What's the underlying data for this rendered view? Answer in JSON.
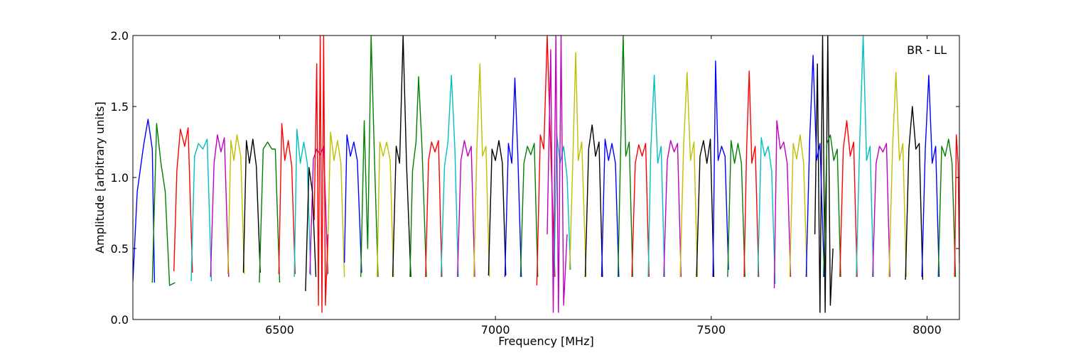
{
  "chart_data": {
    "type": "line",
    "title": "",
    "xlabel": "Frequency [MHz]",
    "ylabel": "Amplitude [arbitrary units]",
    "xlim": [
      6160,
      8075
    ],
    "ylim": [
      0,
      2.0
    ],
    "x_ticks": [
      6500,
      7000,
      7500,
      8000
    ],
    "x_tick_labels": [
      "6500",
      "7000",
      "7500",
      "8000"
    ],
    "y_ticks": [
      0.0,
      0.5,
      1.0,
      1.5,
      2.0
    ],
    "y_tick_labels": [
      "0.0",
      "0.5",
      "1.0",
      "1.5",
      "2.0"
    ],
    "grid": false,
    "annotation": "BR - LL",
    "background_series_color": "#bfbfbf",
    "palette": [
      "#0000ff",
      "#008000",
      "#ff0000",
      "#00bfbf",
      "#bf00bf",
      "#bfbf00",
      "#000000"
    ],
    "series": [
      {
        "color": "#0000ff",
        "x": [
          6160,
          6170,
          6185,
          6195,
          6205,
          6210
        ],
        "y": [
          0.27,
          0.9,
          1.23,
          1.41,
          1.2,
          0.26
        ]
      },
      {
        "color": "#008000",
        "x": [
          6205,
          6215,
          6225,
          6235,
          6245,
          6258
        ],
        "y": [
          0.26,
          1.38,
          1.1,
          0.9,
          0.24,
          0.26
        ]
      },
      {
        "color": "#ff0000",
        "x": [
          6255,
          6262,
          6270,
          6280,
          6288,
          6298
        ],
        "y": [
          0.34,
          1.05,
          1.34,
          1.22,
          1.35,
          0.33
        ]
      },
      {
        "color": "#00bfbf",
        "x": [
          6295,
          6303,
          6312,
          6322,
          6332,
          6342
        ],
        "y": [
          0.27,
          1.15,
          1.24,
          1.2,
          1.27,
          0.27
        ]
      },
      {
        "color": "#bf00bf",
        "x": [
          6340,
          6348,
          6356,
          6364,
          6372,
          6382
        ],
        "y": [
          0.3,
          1.1,
          1.3,
          1.18,
          1.28,
          0.3
        ]
      },
      {
        "color": "#bfbf00",
        "x": [
          6380,
          6387,
          6394,
          6401,
          6410,
          6418
        ],
        "y": [
          0.32,
          1.26,
          1.12,
          1.3,
          1.15,
          0.32
        ]
      },
      {
        "color": "#000000",
        "x": [
          6416,
          6423,
          6430,
          6438,
          6446,
          6455
        ],
        "y": [
          0.33,
          1.26,
          1.1,
          1.27,
          1.08,
          0.33
        ]
      },
      {
        "color": "#008000",
        "x": [
          6453,
          6462,
          6472,
          6482,
          6490,
          6500
        ],
        "y": [
          0.26,
          1.2,
          1.25,
          1.2,
          1.2,
          0.26
        ]
      },
      {
        "color": "#ff0000",
        "x": [
          6498,
          6505,
          6512,
          6520,
          6528,
          6536
        ],
        "y": [
          0.32,
          1.38,
          1.12,
          1.26,
          1.08,
          0.32
        ]
      },
      {
        "color": "#00bfbf",
        "x": [
          6534,
          6540,
          6548,
          6556,
          6564,
          6572
        ],
        "y": [
          0.3,
          1.34,
          1.1,
          1.25,
          1.1,
          0.31
        ]
      },
      {
        "color": "#bf00bf",
        "x": [
          6570,
          6578,
          6586,
          6594,
          6602,
          6612
        ],
        "y": [
          0.32,
          1.13,
          1.2,
          1.16,
          1.22,
          0.32
        ]
      },
      {
        "color": "#bfbf00",
        "x": [
          6610,
          6618,
          6626,
          6634,
          6642,
          6650
        ],
        "y": [
          0.31,
          1.32,
          1.12,
          1.26,
          1.1,
          0.3
        ]
      },
      {
        "color": "#ff0000",
        "x": [
          6580,
          6586,
          6590,
          6594,
          6598,
          6602,
          6606,
          6612
        ],
        "y": [
          0.7,
          1.8,
          0.1,
          2.0,
          0.05,
          2.0,
          0.1,
          0.6
        ]
      },
      {
        "color": "#000000",
        "x": [
          6560,
          6568,
          6576,
          6584
        ],
        "y": [
          0.2,
          1.07,
          0.9,
          0.3
        ]
      },
      {
        "color": "#0000ff",
        "x": [
          6650,
          6656,
          6664,
          6672,
          6680,
          6690
        ],
        "y": [
          0.4,
          1.3,
          1.15,
          1.25,
          1.12,
          0.33
        ]
      },
      {
        "color": "#008000",
        "x": [
          6688,
          6696,
          6704,
          6712,
          6720,
          6728
        ],
        "y": [
          0.3,
          1.4,
          0.5,
          2.0,
          1.1,
          0.3
        ]
      },
      {
        "color": "#bfbf00",
        "x": [
          6726,
          6732,
          6740,
          6748,
          6756,
          6764
        ],
        "y": [
          0.3,
          1.25,
          1.15,
          1.25,
          1.12,
          0.3
        ]
      },
      {
        "color": "#000000",
        "x": [
          6762,
          6770,
          6778,
          6786,
          6794,
          6804
        ],
        "y": [
          0.3,
          1.22,
          1.1,
          2.0,
          1.1,
          0.3
        ]
      },
      {
        "color": "#008000",
        "x": [
          6802,
          6808,
          6816,
          6822,
          6830,
          6840
        ],
        "y": [
          0.3,
          1.05,
          1.25,
          1.71,
          1.2,
          0.3
        ]
      },
      {
        "color": "#ff0000",
        "x": [
          6838,
          6845,
          6852,
          6860,
          6868,
          6876
        ],
        "y": [
          0.3,
          1.12,
          1.25,
          1.18,
          1.26,
          0.3
        ]
      },
      {
        "color": "#00bfbf",
        "x": [
          6874,
          6882,
          6890,
          6898,
          6906,
          6914
        ],
        "y": [
          0.3,
          1.08,
          1.25,
          1.72,
          1.2,
          0.3
        ]
      },
      {
        "color": "#bf00bf",
        "x": [
          6912,
          6920,
          6928,
          6936,
          6944,
          6952
        ],
        "y": [
          0.3,
          1.12,
          1.26,
          1.15,
          1.22,
          0.3
        ]
      },
      {
        "color": "#bfbf00",
        "x": [
          6950,
          6957,
          6964,
          6970,
          6978,
          6986
        ],
        "y": [
          0.3,
          1.2,
          1.8,
          1.15,
          1.22,
          0.3
        ]
      },
      {
        "color": "#000000",
        "x": [
          6984,
          6992,
          7000,
          7008,
          7016,
          7024
        ],
        "y": [
          0.31,
          1.2,
          1.12,
          1.26,
          1.1,
          0.31
        ]
      },
      {
        "color": "#0000ff",
        "x": [
          7022,
          7030,
          7038,
          7045,
          7052,
          7060
        ],
        "y": [
          0.3,
          1.24,
          1.1,
          1.7,
          1.15,
          0.3
        ]
      },
      {
        "color": "#008000",
        "x": [
          7058,
          7066,
          7074,
          7082,
          7090,
          7098
        ],
        "y": [
          0.3,
          1.1,
          1.22,
          1.16,
          1.24,
          0.3
        ]
      },
      {
        "color": "#ff0000",
        "x": [
          7096,
          7104,
          7112,
          7120,
          7128,
          7138
        ],
        "y": [
          0.24,
          1.3,
          1.2,
          2.0,
          1.2,
          0.3
        ]
      },
      {
        "color": "#00bfbf",
        "x": [
          7136,
          7142,
          7150,
          7158,
          7166,
          7174
        ],
        "y": [
          0.3,
          1.3,
          1.1,
          1.22,
          1.0,
          0.35
        ]
      },
      {
        "color": "#bf00bf",
        "x": [
          7120,
          7128,
          7134,
          7140,
          7146,
          7152,
          7158,
          7166
        ],
        "y": [
          0.6,
          1.9,
          0.05,
          2.0,
          0.05,
          2.0,
          0.1,
          0.6
        ]
      },
      {
        "color": "#bfbf00",
        "x": [
          7172,
          7180,
          7186,
          7192,
          7200,
          7210
        ],
        "y": [
          0.35,
          1.2,
          1.88,
          1.12,
          1.25,
          0.3
        ]
      },
      {
        "color": "#000000",
        "x": [
          7208,
          7216,
          7224,
          7232,
          7240,
          7248
        ],
        "y": [
          0.3,
          1.2,
          1.37,
          1.15,
          1.25,
          0.3
        ]
      },
      {
        "color": "#0000ff",
        "x": [
          7246,
          7254,
          7262,
          7270,
          7278,
          7286
        ],
        "y": [
          0.3,
          1.27,
          1.12,
          1.24,
          1.1,
          0.3
        ]
      },
      {
        "color": "#008000",
        "x": [
          7284,
          7290,
          7296,
          7302,
          7310,
          7318
        ],
        "y": [
          0.3,
          1.2,
          2.0,
          1.15,
          1.25,
          0.3
        ]
      },
      {
        "color": "#ff0000",
        "x": [
          7316,
          7324,
          7332,
          7340,
          7348,
          7356
        ],
        "y": [
          0.3,
          1.1,
          1.23,
          1.15,
          1.24,
          0.3
        ]
      },
      {
        "color": "#00bfbf",
        "x": [
          7354,
          7360,
          7368,
          7376,
          7384,
          7392
        ],
        "y": [
          0.3,
          1.2,
          1.72,
          1.1,
          1.22,
          0.3
        ]
      },
      {
        "color": "#bf00bf",
        "x": [
          7390,
          7398,
          7406,
          7414,
          7422,
          7430
        ],
        "y": [
          0.3,
          1.12,
          1.26,
          1.18,
          1.24,
          0.3
        ]
      },
      {
        "color": "#bfbf00",
        "x": [
          7428,
          7436,
          7444,
          7452,
          7460,
          7468
        ],
        "y": [
          0.3,
          1.22,
          1.74,
          1.12,
          1.25,
          0.3
        ]
      },
      {
        "color": "#000000",
        "x": [
          7466,
          7474,
          7482,
          7490,
          7498,
          7506
        ],
        "y": [
          0.3,
          1.15,
          1.26,
          1.1,
          1.27,
          0.3
        ]
      },
      {
        "color": "#0000ff",
        "x": [
          7504,
          7510,
          7516,
          7524,
          7532,
          7540
        ],
        "y": [
          0.3,
          1.82,
          1.12,
          1.22,
          1.15,
          0.35
        ]
      },
      {
        "color": "#008000",
        "x": [
          7538,
          7546,
          7554,
          7562,
          7570,
          7578
        ],
        "y": [
          0.3,
          1.26,
          1.1,
          1.24,
          1.1,
          0.3
        ]
      },
      {
        "color": "#ff0000",
        "x": [
          7576,
          7582,
          7588,
          7594,
          7602,
          7610
        ],
        "y": [
          0.3,
          1.2,
          1.75,
          1.1,
          1.22,
          0.3
        ]
      },
      {
        "color": "#00bfbf",
        "x": [
          7608,
          7616,
          7624,
          7632,
          7640,
          7648
        ],
        "y": [
          0.3,
          1.28,
          1.15,
          1.22,
          1.05,
          0.25
        ]
      },
      {
        "color": "#bf00bf",
        "x": [
          7646,
          7652,
          7660,
          7668,
          7676,
          7684
        ],
        "y": [
          0.22,
          1.4,
          1.2,
          1.25,
          1.1,
          0.3
        ]
      },
      {
        "color": "#bfbf00",
        "x": [
          7682,
          7690,
          7698,
          7706,
          7714,
          7722
        ],
        "y": [
          0.3,
          1.24,
          1.13,
          1.3,
          1.1,
          0.3
        ]
      },
      {
        "color": "#000000",
        "x": [
          7740,
          7746,
          7752,
          7758,
          7764,
          7770,
          7776,
          7782
        ],
        "y": [
          0.6,
          1.8,
          0.05,
          2.0,
          0.05,
          2.0,
          0.1,
          0.5
        ]
      },
      {
        "color": "#0000ff",
        "x": [
          7720,
          7728,
          7736,
          7744,
          7752,
          7762
        ],
        "y": [
          0.3,
          1.26,
          1.86,
          1.12,
          1.24,
          0.3
        ]
      },
      {
        "color": "#008000",
        "x": [
          7760,
          7768,
          7776,
          7784,
          7792,
          7800
        ],
        "y": [
          0.3,
          1.24,
          1.3,
          1.12,
          1.2,
          0.3
        ]
      },
      {
        "color": "#ff0000",
        "x": [
          7798,
          7806,
          7814,
          7822,
          7830,
          7838
        ],
        "y": [
          0.3,
          1.2,
          1.4,
          1.15,
          1.25,
          0.3
        ]
      },
      {
        "color": "#00bfbf",
        "x": [
          7836,
          7844,
          7852,
          7860,
          7868,
          7876
        ],
        "y": [
          0.3,
          1.24,
          2.0,
          1.12,
          1.22,
          0.3
        ]
      },
      {
        "color": "#bf00bf",
        "x": [
          7874,
          7882,
          7890,
          7898,
          7906,
          7914
        ],
        "y": [
          0.3,
          1.1,
          1.22,
          1.18,
          1.24,
          0.3
        ]
      },
      {
        "color": "#bfbf00",
        "x": [
          7912,
          7920,
          7928,
          7936,
          7944,
          7952
        ],
        "y": [
          0.3,
          1.2,
          1.74,
          1.12,
          1.24,
          0.3
        ]
      },
      {
        "color": "#000000",
        "x": [
          7950,
          7958,
          7966,
          7974,
          7982,
          7990
        ],
        "y": [
          0.28,
          1.2,
          1.5,
          1.2,
          1.24,
          0.28
        ]
      },
      {
        "color": "#0000ff",
        "x": [
          7988,
          7996,
          8004,
          8012,
          8020,
          8028
        ],
        "y": [
          0.3,
          1.2,
          1.72,
          1.1,
          1.22,
          0.3
        ]
      },
      {
        "color": "#008000",
        "x": [
          8026,
          8034,
          8042,
          8050,
          8058,
          8066
        ],
        "y": [
          0.3,
          1.22,
          1.15,
          1.27,
          1.1,
          0.3
        ]
      },
      {
        "color": "#ff0000",
        "x": [
          8064,
          8068,
          8072,
          8075
        ],
        "y": [
          0.3,
          1.3,
          1.1,
          0.4
        ]
      }
    ]
  }
}
